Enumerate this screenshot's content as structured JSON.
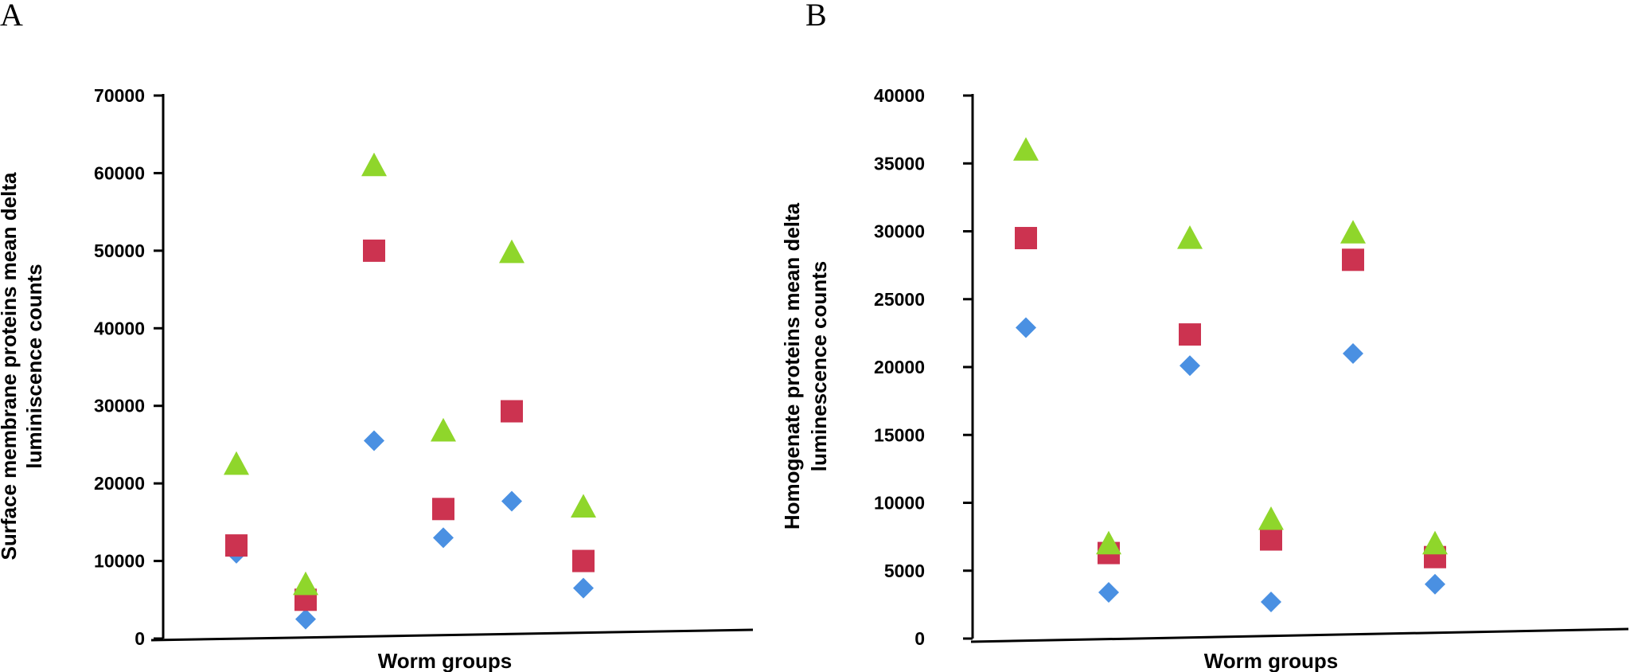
{
  "colors": {
    "diamond": "#4a90e2",
    "square": "#cc3350",
    "triangle": "#8fd62b"
  },
  "chart_data": [
    {
      "type": "scatter",
      "panel_label": "A",
      "title": "",
      "xlabel": "Worm groups",
      "ylabel_lines": [
        "Surface membrane proteins mean delta",
        "luminiscence counts"
      ],
      "ylim": [
        0,
        70000
      ],
      "yticks": [
        0,
        10000,
        20000,
        30000,
        40000,
        50000,
        60000,
        70000
      ],
      "ytick_labels": [
        "0",
        "10000",
        "20000",
        "30000",
        "40000",
        "50000",
        "60000",
        "70000"
      ],
      "groups": 6,
      "series": [
        {
          "name": "diamond",
          "marker": "diamond",
          "values": [
            11000,
            2500,
            25500,
            13000,
            17700,
            6500
          ]
        },
        {
          "name": "square",
          "marker": "square",
          "values": [
            12000,
            5000,
            50000,
            16700,
            29300,
            10000
          ]
        },
        {
          "name": "triangle",
          "marker": "triangle",
          "values": [
            22500,
            7000,
            61000,
            26800,
            49800,
            17000
          ]
        }
      ]
    },
    {
      "type": "scatter",
      "panel_label": "B",
      "title": "",
      "xlabel": "Worm groups",
      "ylabel_lines": [
        "Homogenate proteins mean delta",
        "luminescence counts"
      ],
      "ylim": [
        0,
        40000
      ],
      "yticks": [
        0,
        5000,
        10000,
        15000,
        20000,
        25000,
        30000,
        35000,
        40000
      ],
      "ytick_labels": [
        "0",
        "5000",
        "10000",
        "15000",
        "20000",
        "25000",
        "30000",
        "35000",
        "40000"
      ],
      "groups": 6,
      "series": [
        {
          "name": "diamond",
          "marker": "diamond",
          "values": [
            22900,
            3400,
            20100,
            2700,
            21000,
            4000
          ]
        },
        {
          "name": "square",
          "marker": "square",
          "values": [
            29500,
            6300,
            22400,
            7300,
            27900,
            6000
          ]
        },
        {
          "name": "triangle",
          "marker": "triangle",
          "values": [
            36000,
            7000,
            29500,
            8800,
            29900,
            7000
          ]
        }
      ]
    }
  ]
}
